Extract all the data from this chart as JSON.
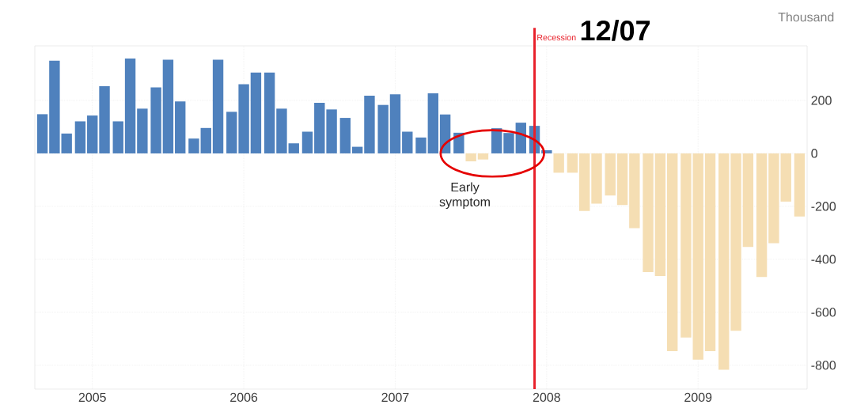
{
  "chart_data": {
    "type": "bar",
    "ylabel": "Thousand",
    "x": [
      "2004-09",
      "2004-10",
      "2004-11",
      "2004-12",
      "2005-01",
      "2005-02",
      "2005-03",
      "2005-04",
      "2005-05",
      "2005-06",
      "2005-07",
      "2005-08",
      "2005-09",
      "2005-10",
      "2005-11",
      "2005-12",
      "2006-01",
      "2006-02",
      "2006-03",
      "2006-04",
      "2006-05",
      "2006-06",
      "2006-07",
      "2006-08",
      "2006-09",
      "2006-10",
      "2006-11",
      "2006-12",
      "2007-01",
      "2007-02",
      "2007-03",
      "2007-04",
      "2007-05",
      "2007-06",
      "2007-07",
      "2007-08",
      "2007-09",
      "2007-10",
      "2007-11",
      "2007-12",
      "2008-01",
      "2008-02",
      "2008-03",
      "2008-04",
      "2008-05",
      "2008-06",
      "2008-07",
      "2008-08",
      "2008-09",
      "2008-10",
      "2008-11",
      "2008-12",
      "2009-01",
      "2009-02",
      "2009-03",
      "2009-04",
      "2009-05",
      "2009-06",
      "2009-07",
      "2009-08",
      "2009-09"
    ],
    "values": [
      148,
      350,
      75,
      121,
      143,
      254,
      121,
      358,
      169,
      249,
      354,
      196,
      56,
      96,
      354,
      157,
      261,
      305,
      305,
      169,
      38,
      82,
      191,
      166,
      134,
      25,
      218,
      183,
      223,
      82,
      60,
      227,
      147,
      78,
      -30,
      -23,
      95,
      77,
      116,
      104,
      12,
      -73,
      -73,
      -217,
      -190,
      -159,
      -195,
      -282,
      -448,
      -463,
      -747,
      -695,
      -779,
      -747,
      -817,
      -670,
      -353,
      -467,
      -339,
      -182,
      -238
    ],
    "colors": [
      "#4f81bd",
      "#4f81bd",
      "#4f81bd",
      "#4f81bd",
      "#4f81bd",
      "#4f81bd",
      "#4f81bd",
      "#4f81bd",
      "#4f81bd",
      "#4f81bd",
      "#4f81bd",
      "#4f81bd",
      "#4f81bd",
      "#4f81bd",
      "#4f81bd",
      "#4f81bd",
      "#4f81bd",
      "#4f81bd",
      "#4f81bd",
      "#4f81bd",
      "#4f81bd",
      "#4f81bd",
      "#4f81bd",
      "#4f81bd",
      "#4f81bd",
      "#4f81bd",
      "#4f81bd",
      "#4f81bd",
      "#4f81bd",
      "#4f81bd",
      "#4f81bd",
      "#4f81bd",
      "#4f81bd",
      "#4f81bd",
      "#f5deb3",
      "#f5deb3",
      "#4f81bd",
      "#4f81bd",
      "#4f81bd",
      "#4f81bd",
      "#4f81bd",
      "#f5deb3",
      "#f5deb3",
      "#f5deb3",
      "#f5deb3",
      "#f5deb3",
      "#f5deb3",
      "#f5deb3",
      "#f5deb3",
      "#f5deb3",
      "#f5deb3",
      "#f5deb3",
      "#f5deb3",
      "#f5deb3",
      "#f5deb3",
      "#f5deb3",
      "#f5deb3",
      "#f5deb3",
      "#f5deb3",
      "#f5deb3",
      "#f5deb3"
    ],
    "xlim": [
      "2004-08-15",
      "2009-09-20"
    ],
    "ylim": [
      -890,
      406
    ],
    "xticks": [
      "2005",
      "2006",
      "2007",
      "2008",
      "2009"
    ],
    "yticks": [
      -800,
      -600,
      -400,
      -200,
      0,
      200
    ],
    "grid": true,
    "ref_lines": [
      {
        "axis": "x",
        "value": "2007-12",
        "label": "Recession",
        "color": "#e8202a"
      }
    ],
    "annotations": [
      "Early symptom",
      "12/07"
    ]
  }
}
